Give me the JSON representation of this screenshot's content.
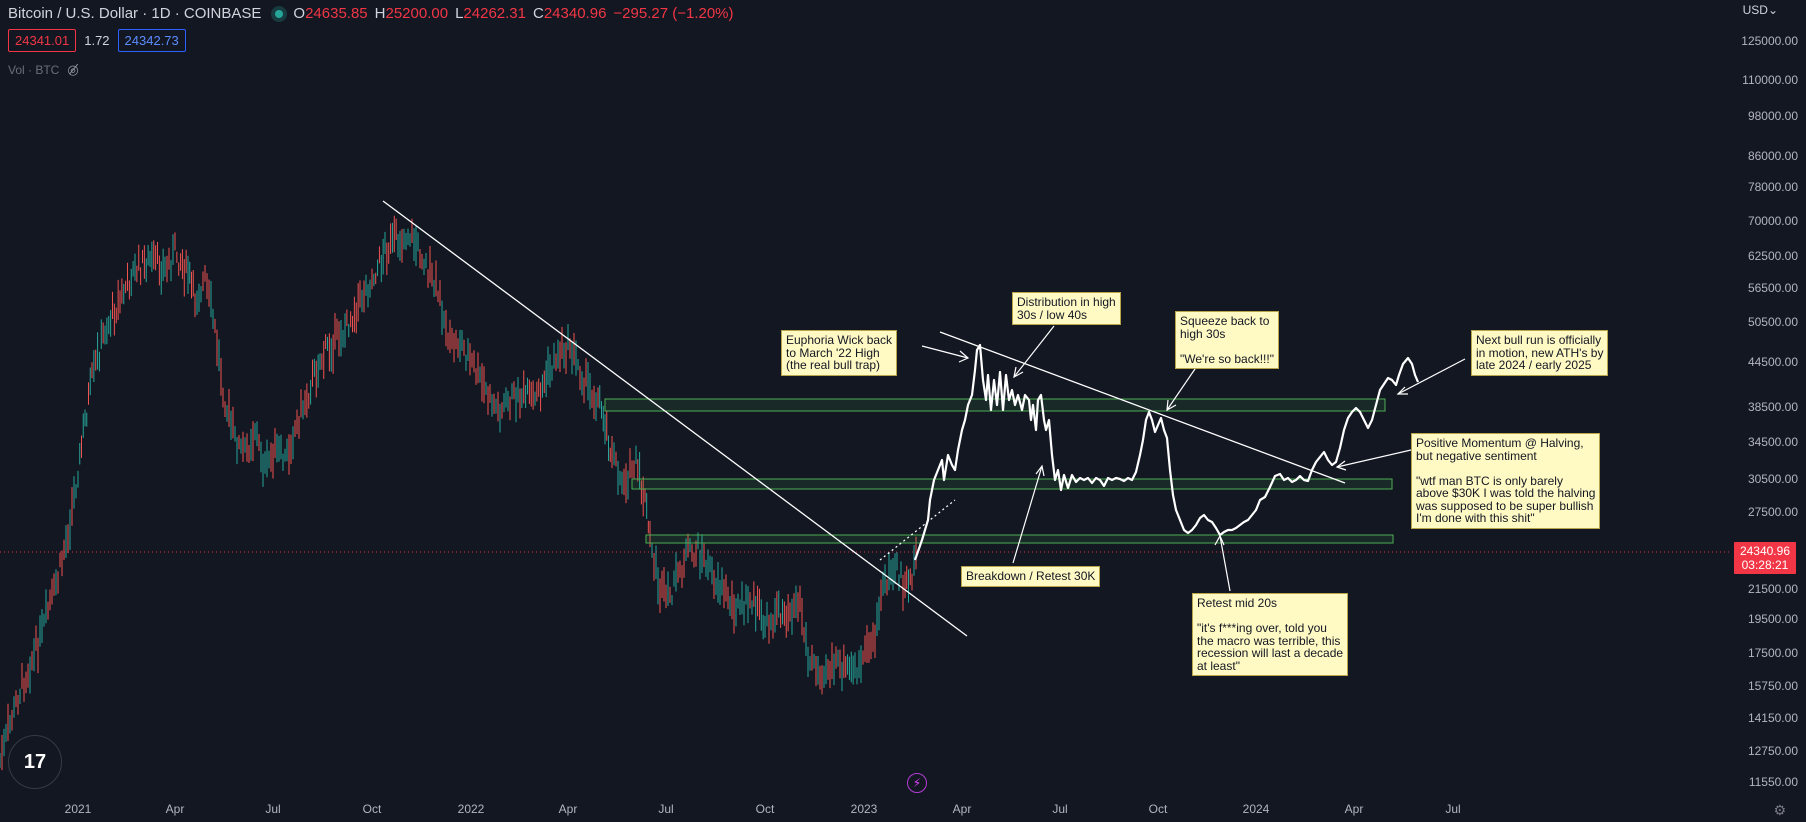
{
  "header": {
    "symbol": "Bitcoin / U.S. Dollar · 1D · COINBASE",
    "open_label": "O",
    "open": "24635.85",
    "high_label": "H",
    "high": "25200.00",
    "low_label": "L",
    "low": "24262.31",
    "close_label": "C",
    "close": "24340.96",
    "change": "−295.27 (−1.20%)",
    "sell_price": "24341.01",
    "spread": "1.72",
    "buy_price": "24342.73",
    "vol_label": "Vol · BTC",
    "market_dot_color": "#26a69a"
  },
  "currency": "USD",
  "price_axis": [
    "125000.00",
    "110000.00",
    "98000.00",
    "86000.00",
    "78000.00",
    "70000.00",
    "62500.00",
    "56500.00",
    "50500.00",
    "44500.00",
    "38500.00",
    "34500.00",
    "30500.00",
    "27500.00",
    "21500.00",
    "19500.00",
    "17500.00",
    "15750.00",
    "14150.00",
    "12750.00",
    "11550.00"
  ],
  "time_axis": [
    "2021",
    "Apr",
    "Jul",
    "Oct",
    "2022",
    "Apr",
    "Jul",
    "Oct",
    "2023",
    "Apr",
    "Jul",
    "Oct",
    "2024",
    "Apr",
    "Jul"
  ],
  "last_price": "24340.96",
  "countdown": "03:28:21",
  "colors": {
    "up": "#26a69a",
    "down": "#ef5350",
    "zone": "#4caf50",
    "note_bg": "#fff9c4"
  },
  "annotations": {
    "euphoria": "Euphoria Wick back\nto March '22 High\n(the real bull trap)",
    "distribution": "Distribution in high\n30s / low 40s",
    "squeeze": "Squeeze back to\nhigh 30s\n\n\"We're so back!!!\"",
    "bull_run": "Next bull run is officially\nin motion, new ATH's by\nlate 2024 / early 2025",
    "momentum": "Positive Momentum @ Halving,\nbut negative sentiment\n\n\"wtf man BTC is only barely\nabove $30K I was told the halving\nwas supposed to be super bullish\nI'm done with this shit\"",
    "breakdown": "Breakdown / Retest 30K",
    "retest": "Retest mid 20s\n\n\"it's f***ing over, told you\nthe macro was terrible, this\nrecession will last a decade\nat least\""
  },
  "icons": {
    "logo": "tradingview-logo-icon",
    "eye": "eye-hidden-icon",
    "bolt": "lightning-icon",
    "gear": "gear-icon",
    "dropdown": "chevron-down-icon"
  }
}
